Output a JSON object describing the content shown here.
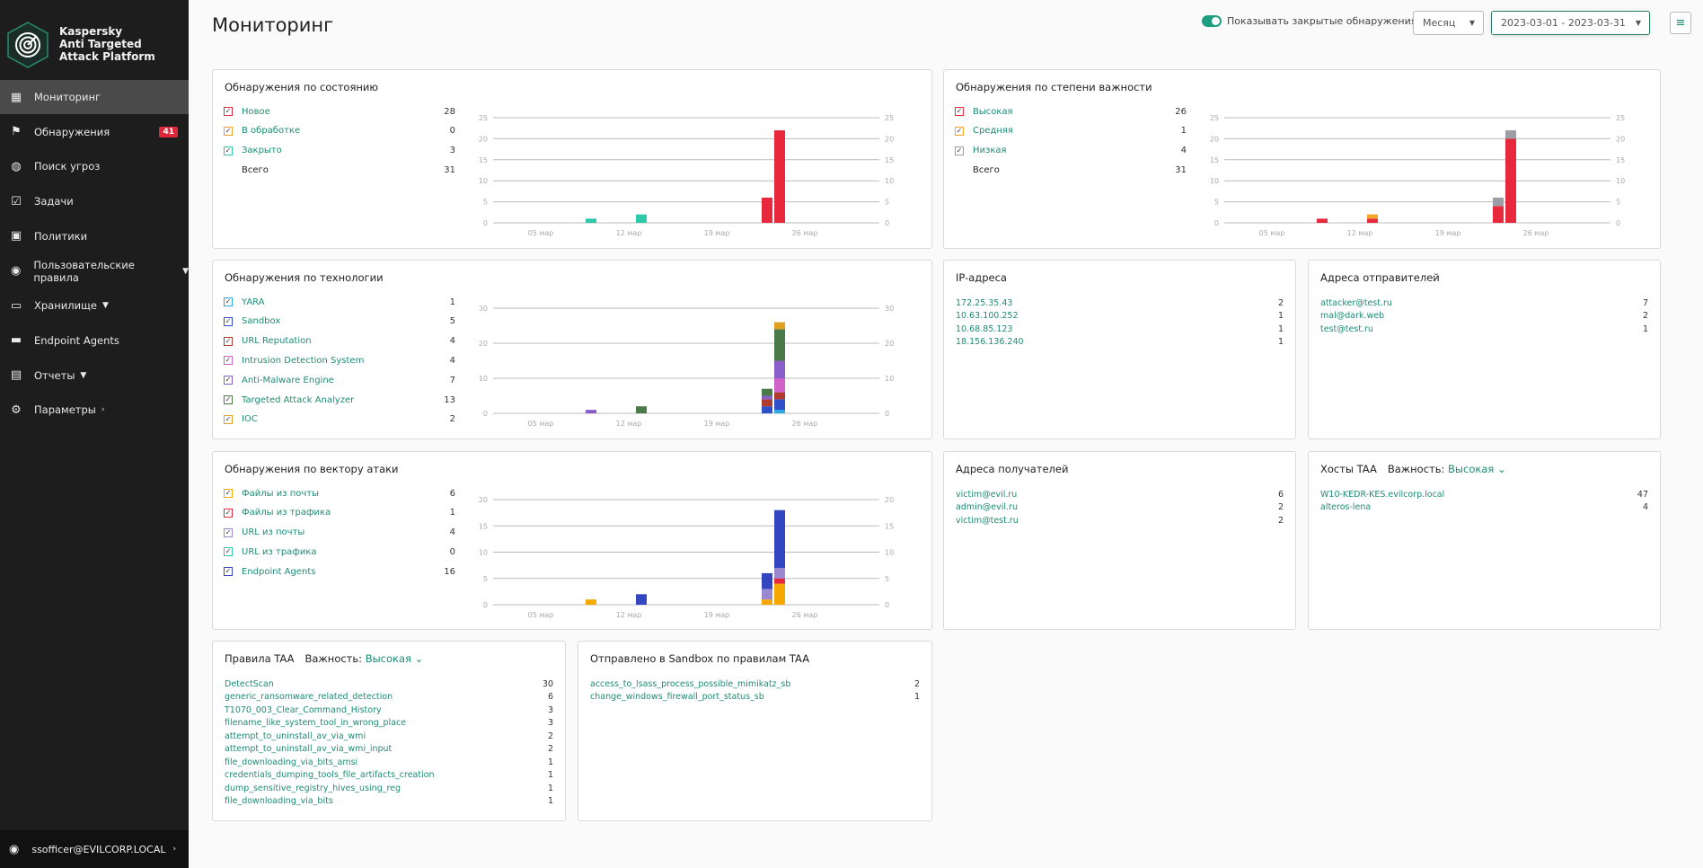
{
  "app": {
    "logo_text": [
      "Kaspersky",
      "Anti Targeted",
      "Attack Platform"
    ]
  },
  "sidebar": {
    "items": [
      {
        "label": "Мониторинг",
        "icon": "dashboard-icon",
        "active": true
      },
      {
        "label": "Обнаружения",
        "icon": "flag-icon",
        "badge": "41"
      },
      {
        "label": "Поиск угроз",
        "icon": "threat-hunting-icon"
      },
      {
        "label": "Задачи",
        "icon": "tasks-checkbox-icon"
      },
      {
        "label": "Политики",
        "icon": "policies-icon"
      },
      {
        "label": "Пользовательские правила",
        "icon": "custom-rules-icon",
        "chevron": "down"
      },
      {
        "label": "Хранилище",
        "icon": "folder-icon",
        "chevron": "down"
      },
      {
        "label": "Endpoint Agents",
        "icon": "monitor-icon"
      },
      {
        "label": "Отчеты",
        "icon": "reports-icon",
        "chevron": "down"
      },
      {
        "label": "Параметры",
        "icon": "gear-icon",
        "chevron": "right"
      }
    ],
    "user": "ssofficer@EVILCORP.LOCAL"
  },
  "header": {
    "title": "Мониторинг",
    "toggle_label": "Показывать закрытые обнаружения",
    "toggle_on": true,
    "period": "Месяц",
    "date_range": "2023-03-01 - 2023-03-31"
  },
  "panels": {
    "state": {
      "title": "Обнаружения по состоянию",
      "total_label": "Всего",
      "total": "31"
    },
    "severity": {
      "title": "Обнаружения по степени важности",
      "total_label": "Всего",
      "total": "31"
    },
    "tech": {
      "title": "Обнаружения по технологии"
    },
    "vector": {
      "title": "Обнаружения по вектору атаки"
    },
    "ip": {
      "title": "IP-адреса",
      "items": [
        {
          "label": "172.25.35.43",
          "count": "2"
        },
        {
          "label": "10.63.100.252",
          "count": "1"
        },
        {
          "label": "10.68.85.123",
          "count": "1"
        },
        {
          "label": "18.156.136.240",
          "count": "1"
        }
      ]
    },
    "senders": {
      "title": "Адреса отправителей",
      "items": [
        {
          "label": "attacker@test.ru",
          "count": "7"
        },
        {
          "label": "mal@dark.web",
          "count": "2"
        },
        {
          "label": "test@test.ru",
          "count": "1"
        }
      ]
    },
    "recipients": {
      "title": "Адреса получателей",
      "items": [
        {
          "label": "victim@evil.ru",
          "count": "6"
        },
        {
          "label": "admin@evil.ru",
          "count": "2"
        },
        {
          "label": "victim@test.ru",
          "count": "2"
        }
      ]
    },
    "hosts": {
      "title": "Хосты TAA",
      "severity_label": "Важность:",
      "severity_value": "Высокая",
      "items": [
        {
          "label": "W10-KEDR-KES.evilcorp.local",
          "count": "47"
        },
        {
          "label": "alteros-lena",
          "count": "4"
        }
      ]
    },
    "rules": {
      "title": "Правила TAA",
      "severity_label": "Важность:",
      "severity_value": "Высокая",
      "items": [
        {
          "label": "DetectScan",
          "count": "30"
        },
        {
          "label": "generic_ransomware_related_detection",
          "count": "6"
        },
        {
          "label": "T1070_003_Clear_Command_History",
          "count": "3"
        },
        {
          "label": "filename_like_system_tool_in_wrong_place",
          "count": "3"
        },
        {
          "label": "attempt_to_uninstall_av_via_wmi",
          "count": "2"
        },
        {
          "label": "attempt_to_uninstall_av_via_wmi_input",
          "count": "2"
        },
        {
          "label": "file_downloading_via_bits_amsi",
          "count": "1"
        },
        {
          "label": "credentials_dumping_tools_file_artifacts_creation",
          "count": "1"
        },
        {
          "label": "dump_sensitive_registry_hives_using_reg",
          "count": "1"
        },
        {
          "label": "file_downloading_via_bits",
          "count": "1"
        }
      ]
    },
    "sandbox": {
      "title": "Отправлено в Sandbox по правилам TAA",
      "items": [
        {
          "label": "access_to_lsass_process_possible_mimikatz_sb",
          "count": "2"
        },
        {
          "label": "change_windows_firewall_port_status_sb",
          "count": "1"
        }
      ]
    }
  },
  "chart_data": [
    {
      "id": "state",
      "type": "bar",
      "stacked": true,
      "title": "Обнаружения по состоянию",
      "days": [
        9,
        13,
        23,
        24
      ],
      "xticks": [
        {
          "day": 5,
          "label": "05 мар"
        },
        {
          "day": 12,
          "label": "12 мар"
        },
        {
          "day": 19,
          "label": "19 мар"
        },
        {
          "day": 26,
          "label": "26 мар"
        }
      ],
      "ylim": [
        0,
        25
      ],
      "yticks": [
        0,
        5,
        10,
        15,
        20,
        25
      ],
      "series": [
        {
          "name": "Новое",
          "total": "28",
          "color": "#e8283c",
          "values": [
            0,
            0,
            6,
            22
          ]
        },
        {
          "name": "В обработке",
          "total": "0",
          "color": "#f0a030",
          "values": [
            0,
            0,
            0,
            0
          ]
        },
        {
          "name": "Закрыто",
          "total": "3",
          "color": "#2ec9a8",
          "values": [
            1,
            2,
            0,
            0
          ]
        }
      ]
    },
    {
      "id": "severity",
      "type": "bar",
      "stacked": true,
      "title": "Обнаружения по степени важности",
      "days": [
        9,
        13,
        23,
        24
      ],
      "xticks": [
        {
          "day": 5,
          "label": "05 мар"
        },
        {
          "day": 12,
          "label": "12 мар"
        },
        {
          "day": 19,
          "label": "19 мар"
        },
        {
          "day": 26,
          "label": "26 мар"
        }
      ],
      "ylim": [
        0,
        25
      ],
      "yticks": [
        0,
        5,
        10,
        15,
        20,
        25
      ],
      "series": [
        {
          "name": "Высокая",
          "total": "26",
          "color": "#e8283c",
          "values": [
            1,
            1,
            4,
            20
          ]
        },
        {
          "name": "Средняя",
          "total": "1",
          "color": "#f5a623",
          "values": [
            0,
            1,
            0,
            0
          ]
        },
        {
          "name": "Низкая",
          "total": "4",
          "color": "#9b9ea5",
          "values": [
            0,
            0,
            2,
            2
          ]
        }
      ]
    },
    {
      "id": "tech",
      "type": "bar",
      "stacked": true,
      "title": "Обнаружения по технологии",
      "days": [
        9,
        13,
        23,
        24
      ],
      "xticks": [
        {
          "day": 5,
          "label": "05 мар"
        },
        {
          "day": 12,
          "label": "12 мар"
        },
        {
          "day": 19,
          "label": "19 мар"
        },
        {
          "day": 26,
          "label": "26 мар"
        }
      ],
      "ylim": [
        0,
        30
      ],
      "yticks": [
        0,
        10,
        20,
        30
      ],
      "series": [
        {
          "name": "YARA",
          "total": "1",
          "color": "#29a8e0",
          "values": [
            0,
            0,
            0,
            1
          ]
        },
        {
          "name": "Sandbox",
          "total": "5",
          "color": "#2e4fc8",
          "values": [
            0,
            0,
            2,
            3
          ]
        },
        {
          "name": "URL Reputation",
          "total": "4",
          "color": "#b03a2e",
          "values": [
            0,
            0,
            2,
            2
          ]
        },
        {
          "name": "Intrusion Detection System",
          "total": "4",
          "color": "#d063c8",
          "values": [
            0,
            0,
            0,
            4
          ]
        },
        {
          "name": "Anti-Malware Engine",
          "total": "7",
          "color": "#8a5ec8",
          "values": [
            1,
            0,
            1,
            5
          ]
        },
        {
          "name": "Targeted Attack Analyzer",
          "total": "13",
          "color": "#4a7a48",
          "values": [
            0,
            2,
            2,
            9
          ]
        },
        {
          "name": "IOC",
          "total": "2",
          "color": "#e0a020",
          "values": [
            0,
            0,
            0,
            2
          ]
        }
      ]
    },
    {
      "id": "vector",
      "type": "bar",
      "stacked": true,
      "title": "Обнаружения по вектору атаки",
      "days": [
        9,
        13,
        23,
        24
      ],
      "xticks": [
        {
          "day": 5,
          "label": "05 мар"
        },
        {
          "day": 12,
          "label": "12 мар"
        },
        {
          "day": 19,
          "label": "19 мар"
        },
        {
          "day": 26,
          "label": "26 мар"
        }
      ],
      "ylim": [
        0,
        20
      ],
      "yticks": [
        0,
        5,
        10,
        15,
        20
      ],
      "series": [
        {
          "name": "Файлы из почты",
          "total": "6",
          "color": "#f5a800",
          "values": [
            1,
            0,
            1,
            4
          ]
        },
        {
          "name": "Файлы из трафика",
          "total": "1",
          "color": "#e8283c",
          "values": [
            0,
            0,
            0,
            1
          ]
        },
        {
          "name": "URL из почты",
          "total": "4",
          "color": "#9a88d0",
          "values": [
            0,
            0,
            2,
            2
          ]
        },
        {
          "name": "URL из трафика",
          "total": "0",
          "color": "#2ec9a8",
          "values": [
            0,
            0,
            0,
            0
          ]
        },
        {
          "name": "Endpoint Agents",
          "total": "16",
          "color": "#3346c0",
          "values": [
            0,
            2,
            3,
            11
          ]
        }
      ]
    }
  ]
}
